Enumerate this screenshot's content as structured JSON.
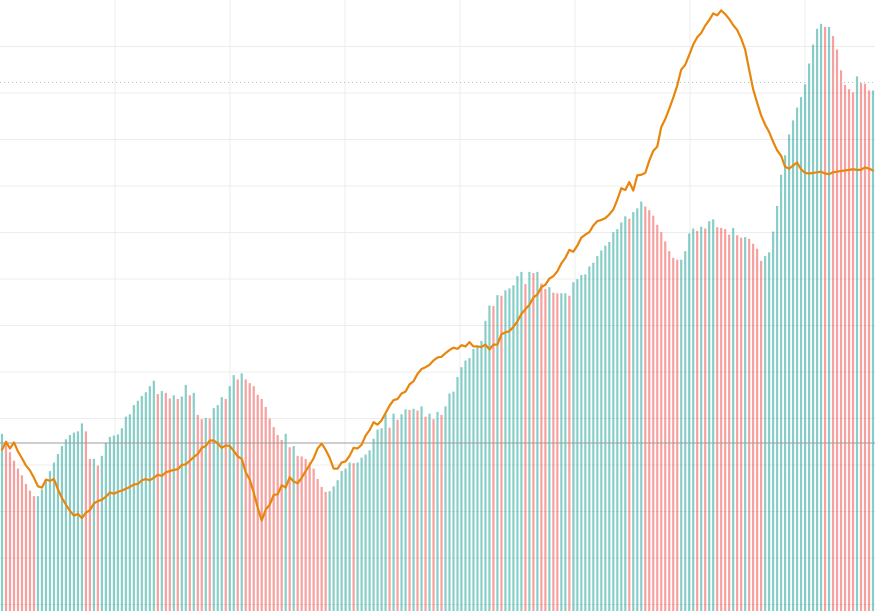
{
  "chart_data": {
    "type": "bar",
    "title": "",
    "xlabel": "",
    "ylabel": "",
    "xlim": [
      0,
      219
    ],
    "ylim": [
      0,
      100
    ],
    "grid": true,
    "legend": "none",
    "reference_level": 27.5,
    "dotted_level": 86.5,
    "colors": {
      "up": "#26a69a",
      "down": "#ef5350",
      "line": "#e8860c",
      "grid": "#ececec",
      "reference": "#9e9e9e",
      "dotted": "#9ecdc9",
      "background": "#ffffff"
    },
    "series": [
      {
        "kind": "bars",
        "values": [
          29,
          27.5,
          26,
          24.6,
          23.3,
          22.2,
          20.8,
          19.7,
          18.8,
          18.8,
          19.9,
          21.4,
          22.9,
          24.3,
          25.7,
          27,
          28.1,
          28.8,
          29.2,
          29.4,
          30.7,
          29.4,
          24.9,
          24.9,
          23.8,
          25.4,
          27.6,
          28.5,
          28.7,
          28.9,
          29.9,
          31.8,
          32.2,
          33.7,
          34.4,
          35.2,
          35.8,
          36.8,
          37.7,
          35.5,
          36,
          35.7,
          34.8,
          35.3,
          34.7,
          35.1,
          37,
          35.3,
          35.7,
          32.1,
          31.4,
          31.6,
          31.5,
          33.2,
          33.7,
          35,
          34.7,
          36.8,
          38.6,
          37.9,
          38.9,
          37.9,
          37.3,
          36.8,
          35.4,
          34.7,
          33.4,
          31.5,
          30.1,
          28.8,
          28,
          29,
          26.8,
          27,
          25.4,
          25.3,
          24.9,
          24.3,
          23.3,
          21.6,
          20.3,
          19.5,
          19.6,
          20.4,
          21.4,
          22.9,
          23.3,
          24.3,
          24.2,
          24.3,
          25.1,
          25.6,
          26.3,
          28.2,
          29.7,
          29.9,
          32.2,
          30,
          32.3,
          31.3,
          32.2,
          33,
          32.9,
          33.1,
          32.8,
          33.5,
          31.8,
          32.3,
          31.4,
          32.6,
          32.1,
          33.5,
          35.6,
          35.9,
          38.3,
          39.9,
          41,
          41.4,
          42.9,
          43.5,
          44.2,
          47.5,
          50,
          49.9,
          51.7,
          51.6,
          52.5,
          52.8,
          53.3,
          54.8,
          55.5,
          53.5,
          55.5,
          55.3,
          55.5,
          53.6,
          52.7,
          53,
          52.1,
          52,
          52,
          52,
          51.6,
          53.8,
          54.3,
          55,
          55.1,
          56.4,
          57,
          58.1,
          59,
          59.8,
          60.4,
          62,
          62.5,
          63.6,
          64.6,
          64.2,
          65.3,
          65.9,
          67,
          66.2,
          65.6,
          64.7,
          63.2,
          62,
          60.5,
          58.9,
          57.8,
          57.5,
          57.5,
          58.9,
          61.8,
          62.6,
          62.2,
          62.9,
          62.6,
          63.8,
          64.1,
          62.8,
          62.7,
          62.5,
          61.6,
          62.7,
          61.5,
          61.1,
          61.2,
          60.9,
          60.1,
          59.3,
          57.3,
          58.1,
          58.7,
          62.1,
          66.3,
          71.4,
          74.6,
          78,
          80.3,
          82.4,
          84.1,
          86.2,
          89.6,
          92.7,
          95.3,
          96.1,
          95.6,
          95.6,
          94.1,
          91.9,
          88.5,
          86.1,
          85.4,
          84.9,
          87.5,
          86.4,
          86.3,
          85.2,
          85.2
        ]
      },
      {
        "kind": "line",
        "values": [
          26.4,
          27.7,
          26.6,
          27.6,
          26.1,
          25,
          23.8,
          23,
          21.8,
          20.4,
          20.2,
          21.5,
          21.3,
          21.6,
          19.9,
          18.5,
          17.4,
          16.4,
          15.6,
          15.9,
          15.2,
          16.1,
          16.5,
          17.6,
          18,
          18.2,
          18.7,
          19.4,
          19.2,
          19.5,
          19.7,
          20,
          20.3,
          20.7,
          20.8,
          21.4,
          21.6,
          21.4,
          21.8,
          22.3,
          22.1,
          22.7,
          22.9,
          23.1,
          23.2,
          23.9,
          24,
          24.6,
          25.2,
          25.7,
          26.7,
          27,
          27.9,
          27.9,
          27.4,
          26.7,
          27.1,
          27,
          26.2,
          25.3,
          24.9,
          22.7,
          21.5,
          19.4,
          16.9,
          14.8,
          16.6,
          17.4,
          19,
          19.1,
          20.6,
          20.2,
          21.9,
          21.2,
          20.9,
          21.8,
          22.9,
          23.9,
          25,
          26.6,
          27.4,
          26.4,
          25.1,
          23.3,
          23.3,
          24.3,
          24.5,
          25.4,
          26.7,
          26.6,
          27.2,
          28.7,
          29.6,
          30.9,
          30.5,
          31.2,
          32.4,
          33.6,
          34.5,
          34.7,
          35.6,
          35.9,
          37.1,
          37.6,
          38.8,
          39.6,
          39.9,
          40.3,
          41,
          41.5,
          41.6,
          42.2,
          42.7,
          43.1,
          42.9,
          43.5,
          43.3,
          44,
          43.3,
          43.3,
          43.2,
          43.6,
          42.8,
          43.6,
          43.6,
          45.3,
          45.6,
          45.8,
          46.5,
          47.4,
          48.6,
          49.4,
          50.1,
          51.3,
          51.8,
          53,
          53.4,
          54.4,
          54.8,
          55.6,
          56.9,
          57.8,
          59.1,
          58.8,
          59.8,
          61.1,
          61.6,
          62,
          63.1,
          63.8,
          64,
          64.3,
          64.9,
          65.7,
          67.3,
          69.2,
          68.9,
          70.2,
          68.8,
          71.3,
          71.4,
          71.7,
          73.7,
          75.3,
          76,
          79.2,
          80.5,
          82.2,
          84,
          86,
          88.6,
          89.4,
          91,
          92.7,
          93.9,
          94.6,
          95.8,
          96.7,
          97.8,
          97.5,
          98.3,
          97.7,
          96.9,
          95.9,
          95.1,
          93.7,
          91.9,
          88.6,
          85.4,
          83.2,
          81.1,
          79.6,
          78.4,
          76.8,
          75.4,
          74.5,
          72.7,
          72.4,
          72.9,
          73.4,
          72.3,
          71.7,
          71.6,
          71.7,
          71.8,
          71.9,
          71.6,
          71.5,
          71.8,
          71.9,
          72,
          72.1,
          72.2,
          72.3,
          72.2,
          72.2,
          72.6,
          72.4,
          72.1
        ]
      }
    ]
  }
}
